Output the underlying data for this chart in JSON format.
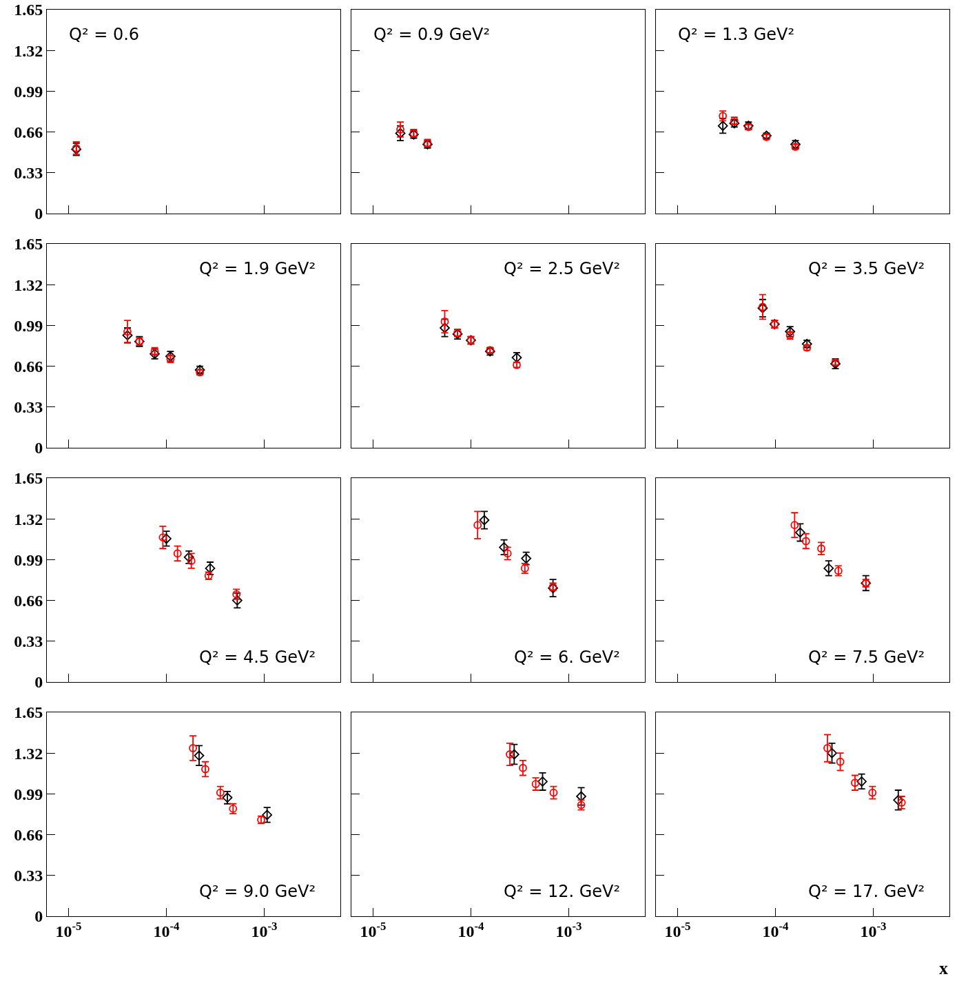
{
  "chart_data": [
    {
      "type": "scatter",
      "annotations": [
        "Q² = 0.6"
      ],
      "log": "x",
      "tick_labels": "y",
      "xlim": [
        6e-06,
        0.006
      ],
      "xticks": [
        {
          "value": 1e-05,
          "label": null
        },
        {
          "value": 0.0001,
          "label": null
        },
        {
          "value": 0.001,
          "label": null
        }
      ],
      "ylim": [
        0,
        1.65
      ],
      "yticks": [
        0,
        0.33,
        0.66,
        0.99,
        1.32,
        1.65
      ],
      "series": [
        {
          "color": "#000000",
          "marker": "diamond",
          "x": [
            1.2e-05
          ],
          "values": [
            0.52
          ],
          "errors": [
            0.05
          ]
        },
        {
          "color": "#ff0000",
          "marker": "circle",
          "x": [
            1.2e-05
          ],
          "values": [
            0.53
          ],
          "errors": [
            0.05
          ]
        }
      ]
    },
    {
      "type": "scatter",
      "annotations": [
        "Q² = 0.9 GeV²"
      ],
      "log": "x",
      "tick_labels": false,
      "xlim": [
        6e-06,
        0.006
      ],
      "xticks": [
        {
          "value": 1e-05,
          "label": null
        },
        {
          "value": 0.0001,
          "label": null
        },
        {
          "value": 0.001,
          "label": null
        }
      ],
      "ylim": [
        0,
        1.65
      ],
      "yticks": [
        0,
        0.33,
        0.66,
        0.99,
        1.32,
        1.65
      ],
      "series": [
        {
          "color": "#000000",
          "marker": "diamond",
          "x": [
            1.9e-05,
            2.6e-05,
            3.6e-05
          ],
          "values": [
            0.65,
            0.64,
            0.56
          ],
          "errors": [
            0.06,
            0.03,
            0.03
          ]
        },
        {
          "color": "#ff0000",
          "marker": "circle",
          "x": [
            1.9e-05,
            2.6e-05,
            3.6e-05
          ],
          "values": [
            0.68,
            0.65,
            0.57
          ],
          "errors": [
            0.06,
            0.03,
            0.03
          ]
        }
      ]
    },
    {
      "type": "scatter",
      "annotations": [
        "Q² = 1.3 GeV²"
      ],
      "log": "x",
      "tick_labels": false,
      "xlim": [
        6e-06,
        0.006
      ],
      "xticks": [
        {
          "value": 1e-05,
          "label": null
        },
        {
          "value": 0.0001,
          "label": null
        },
        {
          "value": 0.001,
          "label": null
        }
      ],
      "ylim": [
        0,
        1.65
      ],
      "yticks": [
        0,
        0.33,
        0.66,
        0.99,
        1.32,
        1.65
      ],
      "series": [
        {
          "color": "#000000",
          "marker": "diamond",
          "x": [
            2.9e-05,
            3.8e-05,
            5.3e-05,
            8.1e-05,
            0.00016
          ],
          "values": [
            0.71,
            0.73,
            0.71,
            0.63,
            0.56
          ],
          "errors": [
            0.06,
            0.03,
            0.03,
            0.02,
            0.03
          ]
        },
        {
          "color": "#ff0000",
          "marker": "circle",
          "x": [
            2.9e-05,
            3.8e-05,
            5.3e-05,
            8.1e-05,
            0.00016
          ],
          "values": [
            0.79,
            0.75,
            0.7,
            0.62,
            0.54
          ],
          "errors": [
            0.04,
            0.03,
            0.02,
            0.02,
            0.02
          ]
        }
      ]
    },
    {
      "type": "scatter",
      "annotations": [
        "Q² = 1.9 GeV²"
      ],
      "log": "x",
      "tick_labels": "y",
      "xlim": [
        6e-06,
        0.006
      ],
      "xticks": [
        {
          "value": 1e-05,
          "label": null
        },
        {
          "value": 0.0001,
          "label": null
        },
        {
          "value": 0.001,
          "label": null
        }
      ],
      "ylim": [
        0,
        1.65
      ],
      "yticks": [
        0,
        0.33,
        0.66,
        0.99,
        1.32,
        1.65
      ],
      "series": [
        {
          "color": "#000000",
          "marker": "diamond",
          "x": [
            4e-05,
            5.3e-05,
            7.6e-05,
            0.00011,
            0.00022
          ],
          "values": [
            0.91,
            0.86,
            0.76,
            0.74,
            0.63
          ],
          "errors": [
            0.06,
            0.04,
            0.04,
            0.04,
            0.03
          ]
        },
        {
          "color": "#ff0000",
          "marker": "circle",
          "x": [
            4e-05,
            5.3e-05,
            7.6e-05,
            0.00011,
            0.00022
          ],
          "values": [
            0.94,
            0.86,
            0.78,
            0.72,
            0.61
          ],
          "errors": [
            0.09,
            0.03,
            0.03,
            0.03,
            0.02
          ]
        }
      ]
    },
    {
      "type": "scatter",
      "annotations": [
        "Q² = 2.5 GeV²"
      ],
      "log": "x",
      "tick_labels": false,
      "xlim": [
        6e-06,
        0.006
      ],
      "xticks": [
        {
          "value": 1e-05,
          "label": null
        },
        {
          "value": 0.0001,
          "label": null
        },
        {
          "value": 0.001,
          "label": null
        }
      ],
      "ylim": [
        0,
        1.65
      ],
      "yticks": [
        0,
        0.33,
        0.66,
        0.99,
        1.32,
        1.65
      ],
      "series": [
        {
          "color": "#000000",
          "marker": "diamond",
          "x": [
            5.4e-05,
            7.3e-05,
            0.0001,
            0.000157,
            0.000294
          ],
          "values": [
            0.97,
            0.92,
            0.87,
            0.78,
            0.73
          ],
          "errors": [
            0.07,
            0.04,
            0.03,
            0.03,
            0.04
          ]
        },
        {
          "color": "#ff0000",
          "marker": "circle",
          "x": [
            5.4e-05,
            7.3e-05,
            0.0001,
            0.000157,
            0.000294
          ],
          "values": [
            1.02,
            0.93,
            0.87,
            0.79,
            0.67
          ],
          "errors": [
            0.09,
            0.03,
            0.03,
            0.02,
            0.02
          ]
        }
      ]
    },
    {
      "type": "scatter",
      "annotations": [
        "Q² = 3.5 GeV²"
      ],
      "log": "x",
      "tick_labels": false,
      "xlim": [
        6e-06,
        0.006
      ],
      "xticks": [
        {
          "value": 1e-05,
          "label": null
        },
        {
          "value": 0.0001,
          "label": null
        },
        {
          "value": 0.001,
          "label": null
        }
      ],
      "ylim": [
        0,
        1.65
      ],
      "yticks": [
        0,
        0.33,
        0.66,
        0.99,
        1.32,
        1.65
      ],
      "series": [
        {
          "color": "#000000",
          "marker": "diamond",
          "x": [
            7.4e-05,
            9.8e-05,
            0.000141,
            0.00021,
            0.00041
          ],
          "values": [
            1.13,
            1.0,
            0.94,
            0.84,
            0.68
          ],
          "errors": [
            0.07,
            0.03,
            0.04,
            0.03,
            0.04
          ]
        },
        {
          "color": "#ff0000",
          "marker": "circle",
          "x": [
            7.4e-05,
            9.8e-05,
            0.000141,
            0.00021,
            0.00041
          ],
          "values": [
            1.14,
            1.0,
            0.91,
            0.81,
            0.69
          ],
          "errors": [
            0.1,
            0.03,
            0.03,
            0.02,
            0.02
          ]
        }
      ]
    },
    {
      "type": "scatter",
      "annotations": [
        "Q² = 4.5 GeV²"
      ],
      "log": "x",
      "tick_labels": "y",
      "xlim": [
        6e-06,
        0.006
      ],
      "xticks": [
        {
          "value": 1e-05,
          "label": null
        },
        {
          "value": 0.0001,
          "label": null
        },
        {
          "value": 0.001,
          "label": null
        }
      ],
      "ylim": [
        0,
        1.65
      ],
      "yticks": [
        0,
        0.33,
        0.66,
        0.99,
        1.32,
        1.65
      ],
      "series": [
        {
          "color": "#000000",
          "marker": "diamond",
          "x": [
            0.0001,
            0.00017,
            0.00028,
            0.00053
          ],
          "values": [
            1.16,
            1.01,
            0.92,
            0.66
          ],
          "errors": [
            0.06,
            0.05,
            0.05,
            0.06
          ]
        },
        {
          "color": "#ff0000",
          "marker": "circle",
          "x": [
            9.2e-05,
            0.00013,
            0.00018,
            0.00027,
            0.00052
          ],
          "values": [
            1.17,
            1.04,
            0.98,
            0.86,
            0.71
          ],
          "errors": [
            0.09,
            0.06,
            0.06,
            0.03,
            0.04
          ]
        }
      ]
    },
    {
      "type": "scatter",
      "annotations": [
        "Q² = 6. GeV²"
      ],
      "log": "x",
      "tick_labels": false,
      "xlim": [
        6e-06,
        0.006
      ],
      "xticks": [
        {
          "value": 1e-05,
          "label": null
        },
        {
          "value": 0.0001,
          "label": null
        },
        {
          "value": 0.001,
          "label": null
        }
      ],
      "ylim": [
        0,
        1.65
      ],
      "yticks": [
        0,
        0.33,
        0.66,
        0.99,
        1.32,
        1.65
      ],
      "series": [
        {
          "color": "#000000",
          "marker": "diamond",
          "x": [
            0.000137,
            0.000218,
            0.000367,
            0.00069
          ],
          "values": [
            1.31,
            1.09,
            1.0,
            0.76
          ],
          "errors": [
            0.07,
            0.06,
            0.05,
            0.07
          ]
        },
        {
          "color": "#ff0000",
          "marker": "circle",
          "x": [
            0.000117,
            0.000237,
            0.000356,
            0.00069
          ],
          "values": [
            1.27,
            1.04,
            0.92,
            0.77
          ],
          "errors": [
            0.11,
            0.05,
            0.04,
            0.03
          ]
        }
      ]
    },
    {
      "type": "scatter",
      "annotations": [
        "Q² = 7.5 GeV²"
      ],
      "log": "x",
      "tick_labels": false,
      "xlim": [
        6e-06,
        0.006
      ],
      "xticks": [
        {
          "value": 1e-05,
          "label": null
        },
        {
          "value": 0.0001,
          "label": null
        },
        {
          "value": 0.001,
          "label": null
        }
      ],
      "ylim": [
        0,
        1.65
      ],
      "yticks": [
        0,
        0.33,
        0.66,
        0.99,
        1.32,
        1.65
      ],
      "series": [
        {
          "color": "#000000",
          "marker": "diamond",
          "x": [
            0.000179,
            0.00035,
            0.00084
          ],
          "values": [
            1.21,
            0.92,
            0.8
          ],
          "errors": [
            0.07,
            0.06,
            0.06
          ]
        },
        {
          "color": "#ff0000",
          "marker": "circle",
          "x": [
            0.000157,
            0.000205,
            0.000294,
            0.00044,
            0.00084
          ],
          "values": [
            1.27,
            1.14,
            1.08,
            0.9,
            0.8
          ],
          "errors": [
            0.1,
            0.06,
            0.05,
            0.04,
            0.03
          ]
        }
      ]
    },
    {
      "type": "scatter",
      "annotations": [
        "Q² = 9.0 GeV²"
      ],
      "log": "x",
      "xlim": [
        6e-06,
        0.006
      ],
      "xticks": [
        {
          "value": 1e-05,
          "label": "10$^{-5}$"
        },
        {
          "value": 0.0001,
          "label": "10$^{-4}$"
        },
        {
          "value": 0.001,
          "label": "10$^{-3}$"
        }
      ],
      "ylim": [
        0,
        1.65
      ],
      "yticks": [
        0,
        0.33,
        0.66,
        0.99,
        1.32,
        1.65
      ],
      "series": [
        {
          "color": "#000000",
          "marker": "diamond",
          "x": [
            0.000216,
            0.00042,
            0.00107
          ],
          "values": [
            1.3,
            0.96,
            0.82
          ],
          "errors": [
            0.08,
            0.05,
            0.06
          ]
        },
        {
          "color": "#ff0000",
          "marker": "circle",
          "x": [
            0.000187,
            0.00025,
            0.000356,
            0.00048,
            0.00093
          ],
          "values": [
            1.36,
            1.19,
            1.0,
            0.87,
            0.78
          ],
          "errors": [
            0.1,
            0.06,
            0.05,
            0.04,
            0.03
          ]
        }
      ]
    },
    {
      "type": "scatter",
      "annotations": [
        "Q² = 12. GeV²"
      ],
      "log": "x",
      "tick_labels": "x",
      "xlim": [
        6e-06,
        0.006
      ],
      "xticks": [
        {
          "value": 1e-05,
          "label": "10$^{-5}$"
        },
        {
          "value": 0.0001,
          "label": "10$^{-4}$"
        },
        {
          "value": 0.001,
          "label": "10$^{-3}$"
        }
      ],
      "ylim": [
        0,
        1.65
      ],
      "yticks": [
        0,
        0.33,
        0.66,
        0.99,
        1.32,
        1.65
      ],
      "series": [
        {
          "color": "#000000",
          "marker": "diamond",
          "x": [
            0.000277,
            0.00054,
            0.00134
          ],
          "values": [
            1.31,
            1.09,
            0.97
          ],
          "errors": [
            0.08,
            0.07,
            0.07
          ]
        },
        {
          "color": "#ff0000",
          "marker": "circle",
          "x": [
            0.00025,
            0.00034,
            0.00046,
            0.0007,
            0.00134
          ],
          "values": [
            1.31,
            1.2,
            1.07,
            1.0,
            0.9
          ],
          "errors": [
            0.09,
            0.06,
            0.05,
            0.05,
            0.04
          ]
        }
      ]
    },
    {
      "type": "scatter",
      "annotations": [
        "Q² = 17. GeV²"
      ],
      "xlabel": "x",
      "log": "x",
      "tick_labels": "x",
      "xlim": [
        6e-06,
        0.006
      ],
      "xticks": [
        {
          "value": 1e-05,
          "label": "10$^{-5}$"
        },
        {
          "value": 0.0001,
          "label": "10$^{-4}$"
        },
        {
          "value": 0.001,
          "label": "10$^{-3}$"
        }
      ],
      "ylim": [
        0,
        1.65
      ],
      "yticks": [
        0,
        0.33,
        0.66,
        0.99,
        1.32,
        1.65
      ],
      "series": [
        {
          "color": "#000000",
          "marker": "diamond",
          "x": [
            0.000378,
            0.00076,
            0.0018
          ],
          "values": [
            1.32,
            1.09,
            0.94
          ],
          "errors": [
            0.08,
            0.06,
            0.08
          ]
        },
        {
          "color": "#ff0000",
          "marker": "circle",
          "x": [
            0.00034,
            0.00046,
            0.00065,
            0.00098,
            0.00195
          ],
          "values": [
            1.36,
            1.25,
            1.08,
            1.0,
            0.92
          ],
          "errors": [
            0.11,
            0.07,
            0.06,
            0.05,
            0.05
          ]
        }
      ]
    }
  ]
}
